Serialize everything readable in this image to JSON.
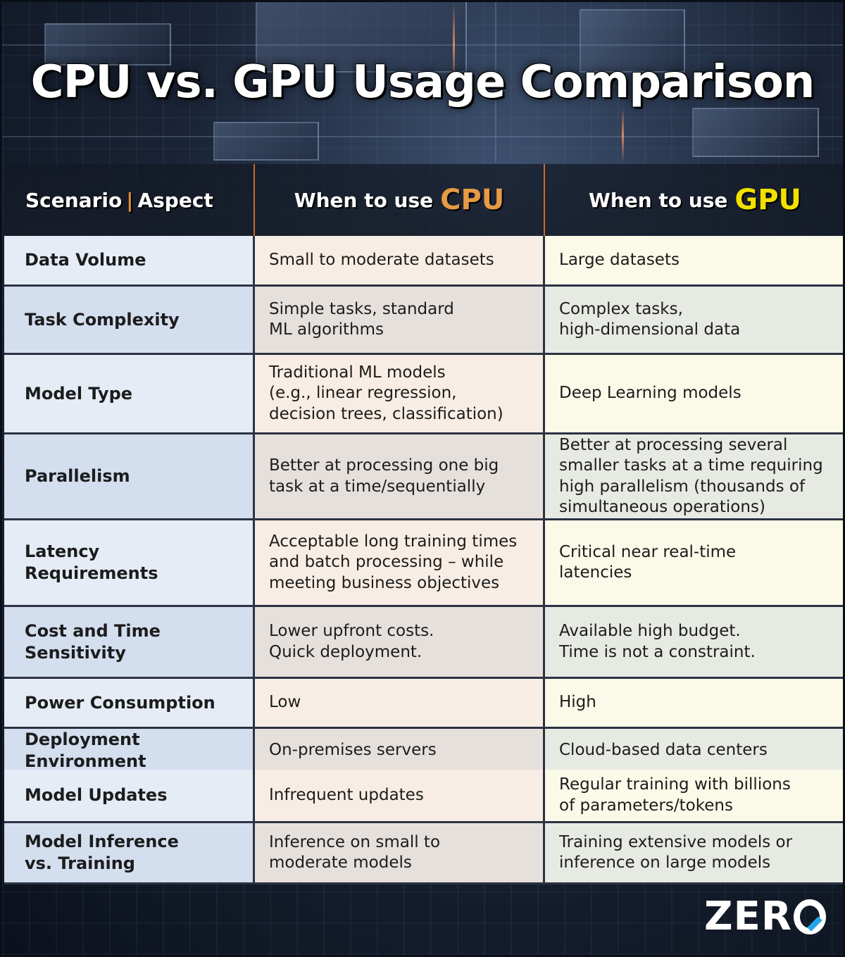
{
  "title": "CPU vs. GPU Usage Comparison",
  "header": {
    "col1_a": "Scenario",
    "col1_sep": "|",
    "col1_b": "Aspect",
    "col2_prefix": "When to use",
    "col2_highlight": "CPU",
    "col3_prefix": "When to use",
    "col3_highlight": "GPU"
  },
  "rows": [
    {
      "aspect": [
        "Data Volume"
      ],
      "cpu": [
        "Small to moderate datasets"
      ],
      "gpu": [
        "Large datasets"
      ]
    },
    {
      "aspect": [
        "Task Complexity"
      ],
      "cpu": [
        "Simple tasks, standard",
        "ML algorithms"
      ],
      "gpu": [
        "Complex tasks,",
        "high-dimensional data"
      ]
    },
    {
      "aspect": [
        "Model Type"
      ],
      "cpu": [
        "Traditional ML models",
        "(e.g., linear regression,",
        "decision trees, classification)"
      ],
      "gpu": [
        "Deep Learning models"
      ]
    },
    {
      "aspect": [
        "Parallelism"
      ],
      "cpu": [
        "Better at processing one big",
        "task at a time/sequentially"
      ],
      "gpu": [
        "Better at processing several",
        "smaller tasks at a time requiring",
        "high parallelism (thousands of",
        "simultaneous operations)"
      ]
    },
    {
      "aspect": [
        "Latency",
        "Requirements"
      ],
      "cpu": [
        "Acceptable long training times",
        "and batch processing – while",
        "meeting business objectives"
      ],
      "gpu": [
        "Critical near real-time",
        "latencies"
      ]
    },
    {
      "aspect": [
        "Cost and Time",
        "Sensitivity"
      ],
      "cpu": [
        "Lower upfront costs.",
        "Quick deployment."
      ],
      "gpu": [
        "Available high budget.",
        "Time is not a constraint."
      ]
    },
    {
      "aspect": [
        "Power Consumption"
      ],
      "cpu": [
        "Low"
      ],
      "gpu": [
        "High"
      ]
    },
    {
      "aspect": [
        "Deployment Environment"
      ],
      "cpu": [
        "On-premises servers"
      ],
      "gpu": [
        "Cloud-based data centers"
      ]
    },
    {
      "aspect": [
        "Model Updates"
      ],
      "cpu": [
        "Infrequent updates"
      ],
      "gpu": [
        "Regular training with billions",
        "of parameters/tokens"
      ]
    },
    {
      "aspect": [
        "Model Inference",
        "vs. Training"
      ],
      "cpu": [
        "Inference on small to",
        "moderate models"
      ],
      "gpu": [
        "Training extensive models or",
        "inference on large models"
      ]
    }
  ],
  "logo": {
    "text_a": "ZER",
    "letter_o": "O"
  },
  "colors": {
    "cpu_accent": "#e69a45",
    "gpu_accent": "#f2e100",
    "logo_slash": "#22a6e8"
  }
}
